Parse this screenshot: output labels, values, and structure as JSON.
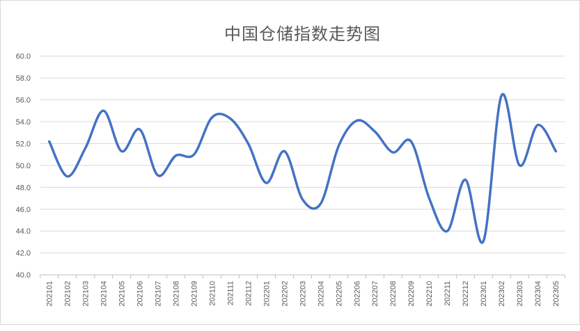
{
  "chart_data": {
    "type": "line",
    "title": "中国仓储指数走势图",
    "categories": [
      "202101",
      "202102",
      "202103",
      "202104",
      "202105",
      "202106",
      "202107",
      "202108",
      "202109",
      "202110",
      "202111",
      "202112",
      "202201",
      "202202",
      "202203",
      "202204",
      "202205",
      "202206",
      "202207",
      "202208",
      "202209",
      "202210",
      "202211",
      "202212",
      "202301",
      "202302",
      "202303",
      "202304",
      "202305"
    ],
    "values": [
      52.2,
      49.0,
      51.6,
      55.0,
      51.3,
      53.3,
      49.1,
      50.9,
      51.0,
      54.4,
      54.3,
      52.0,
      48.4,
      51.3,
      46.9,
      46.5,
      51.8,
      54.1,
      53.1,
      51.2,
      52.2,
      47.0,
      44.0,
      48.7,
      43.1,
      56.4,
      50.0,
      53.7,
      51.3
    ],
    "xlabel": "",
    "ylabel": "",
    "ylim": [
      40,
      60
    ],
    "ytick_step": 2,
    "ytick_labels": [
      "40.0",
      "42.0",
      "44.0",
      "46.0",
      "48.0",
      "50.0",
      "52.0",
      "54.0",
      "56.0",
      "58.0",
      "60.0"
    ],
    "grid": true,
    "legend": "none",
    "smooth": true
  },
  "colors": {
    "line": "#4472C4",
    "grid": "#D9D9D9",
    "axis": "#BFBFBF",
    "tick_label": "#595959",
    "title": "#595959",
    "border": "#D9D9D9",
    "background": "#FFFFFF"
  }
}
